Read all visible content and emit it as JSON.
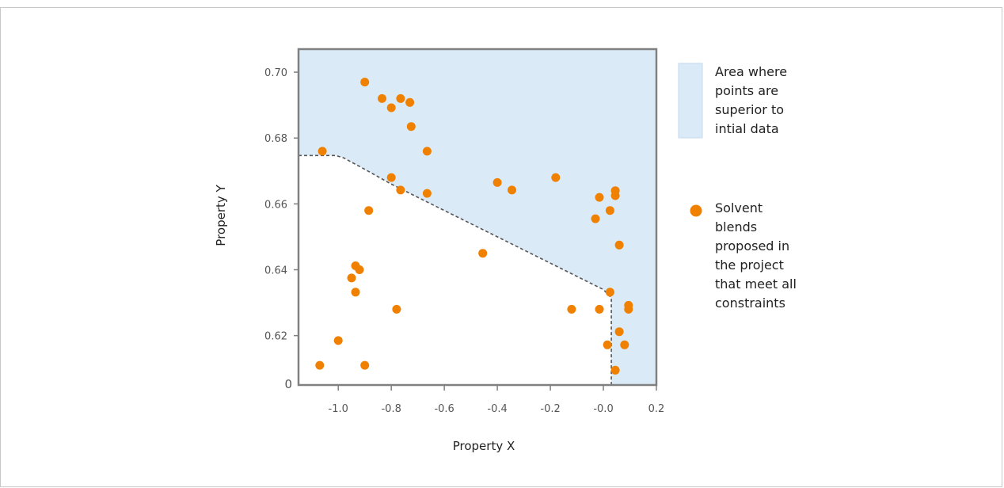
{
  "chart_data": {
    "type": "scatter",
    "xlabel": "Property X",
    "ylabel": "Property Y",
    "xlim": [
      -1.15,
      0.2
    ],
    "ylim": [
      0.605,
      0.707
    ],
    "x_ticks": [
      {
        "value": -1.0,
        "label": "-1.0"
      },
      {
        "value": -0.8,
        "label": "-0.8"
      },
      {
        "value": -0.6,
        "label": "-0.6"
      },
      {
        "value": -0.4,
        "label": "-0.4"
      },
      {
        "value": -0.2,
        "label": "-0.2"
      },
      {
        "value": 0.0,
        "label": "-0.0"
      },
      {
        "value": 0.2,
        "label": "0.2"
      }
    ],
    "y_ticks": [
      {
        "value": 0.62,
        "label": "0.62"
      },
      {
        "value": 0.64,
        "label": "0.64"
      },
      {
        "value": 0.66,
        "label": "0.66"
      },
      {
        "value": 0.68,
        "label": "0.68"
      },
      {
        "value": 0.7,
        "label": "0.70"
      }
    ],
    "y_origin_label": "0",
    "region": {
      "name": "Area where points are superior to intial data",
      "color": "#dbeaf7",
      "boundary": [
        [
          -1.15,
          0.6747
        ],
        [
          -1.01,
          0.6747
        ],
        [
          -0.98,
          0.674
        ],
        [
          -0.9,
          0.6705
        ],
        [
          -0.8,
          0.666
        ],
        [
          -0.7,
          0.662
        ],
        [
          -0.6,
          0.658
        ],
        [
          -0.4,
          0.65
        ],
        [
          -0.2,
          0.642
        ],
        [
          0.0,
          0.634
        ],
        [
          0.03,
          0.6315
        ],
        [
          0.03,
          0.605
        ]
      ]
    },
    "series": [
      {
        "name": "Solvent blends proposed in the project that meet all constraints",
        "color": "#f08000",
        "points": [
          [
            -1.07,
            0.611
          ],
          [
            -1.06,
            0.676
          ],
          [
            -1.0,
            0.6185
          ],
          [
            -0.95,
            0.6375
          ],
          [
            -0.935,
            0.6412
          ],
          [
            -0.935,
            0.6332
          ],
          [
            -0.92,
            0.64
          ],
          [
            -0.9,
            0.697
          ],
          [
            -0.9,
            0.611
          ],
          [
            -0.885,
            0.658
          ],
          [
            -0.835,
            0.692
          ],
          [
            -0.8,
            0.6892
          ],
          [
            -0.8,
            0.668
          ],
          [
            -0.78,
            0.628
          ],
          [
            -0.765,
            0.692
          ],
          [
            -0.765,
            0.6642
          ],
          [
            -0.73,
            0.6908
          ],
          [
            -0.725,
            0.6835
          ],
          [
            -0.665,
            0.676
          ],
          [
            -0.665,
            0.6632
          ],
          [
            -0.455,
            0.645
          ],
          [
            -0.4,
            0.6665
          ],
          [
            -0.345,
            0.6642
          ],
          [
            -0.18,
            0.668
          ],
          [
            -0.12,
            0.628
          ],
          [
            -0.03,
            0.6555
          ],
          [
            -0.015,
            0.662
          ],
          [
            -0.015,
            0.628
          ],
          [
            0.015,
            0.6172
          ],
          [
            0.025,
            0.658
          ],
          [
            0.025,
            0.6332
          ],
          [
            0.045,
            0.664
          ],
          [
            0.045,
            0.6625
          ],
          [
            0.045,
            0.6095
          ],
          [
            0.06,
            0.6475
          ],
          [
            0.06,
            0.6212
          ],
          [
            0.08,
            0.6172
          ],
          [
            0.095,
            0.6292
          ],
          [
            0.095,
            0.628
          ]
        ]
      }
    ],
    "legend": {
      "placement": "right",
      "area_lines": [
        "Area where",
        "points are",
        "superior to",
        "intial data"
      ],
      "points_lines": [
        "Solvent",
        "blends",
        "proposed in",
        "the project",
        "that meet all",
        "constraints"
      ]
    },
    "grid": false
  }
}
